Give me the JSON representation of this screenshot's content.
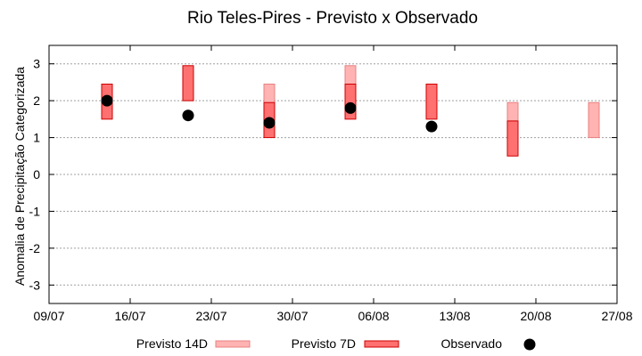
{
  "chart_data": {
    "type": "floating-bar",
    "title": "Rio Teles-Pires - Previsto x Observado",
    "xlabel": "",
    "ylabel": "Anomalia de Precipitação Categorizada",
    "ylim": [
      -3.5,
      3.5
    ],
    "yticks": [
      -3,
      -2,
      -1,
      0,
      1,
      2,
      3
    ],
    "xlim": [
      "2024-07-09",
      "2024-08-27"
    ],
    "xticks": [
      "2024-07-09",
      "2024-07-16",
      "2024-07-23",
      "2024-07-30",
      "2024-08-06",
      "2024-08-13",
      "2024-08-20",
      "2024-08-27"
    ],
    "xtick_labels": [
      "09/07",
      "16/07",
      "23/07",
      "30/07",
      "06/08",
      "13/08",
      "20/08",
      "27/08"
    ],
    "grid": true,
    "legend_position": "bottom",
    "series": [
      {
        "name": "Previsto 14D",
        "kind": "range",
        "color": "#ffb3b3",
        "edge": "#e88080",
        "points": [
          {
            "x": "2024-07-28",
            "low": 1.5,
            "high": 2.45
          },
          {
            "x": "2024-08-04",
            "low": 2.45,
            "high": 2.95
          },
          {
            "x": "2024-08-18",
            "low": 1.45,
            "high": 1.95
          },
          {
            "x": "2024-08-25",
            "low": 1.0,
            "high": 1.95
          }
        ]
      },
      {
        "name": "Previsto 7D",
        "kind": "range",
        "color": "#ff7070",
        "edge": "#cc0000",
        "points": [
          {
            "x": "2024-07-14",
            "low": 1.5,
            "high": 2.45
          },
          {
            "x": "2024-07-21",
            "low": 2.0,
            "high": 2.95
          },
          {
            "x": "2024-07-28",
            "low": 1.0,
            "high": 1.95
          },
          {
            "x": "2024-08-04",
            "low": 1.5,
            "high": 2.45
          },
          {
            "x": "2024-08-11",
            "low": 1.5,
            "high": 2.45
          },
          {
            "x": "2024-08-18",
            "low": 0.5,
            "high": 1.45
          }
        ]
      },
      {
        "name": "Observado",
        "kind": "point",
        "color": "#000000",
        "points": [
          {
            "x": "2024-07-14",
            "y": 2.0
          },
          {
            "x": "2024-07-21",
            "y": 1.6
          },
          {
            "x": "2024-07-28",
            "y": 1.4
          },
          {
            "x": "2024-08-04",
            "y": 1.8
          },
          {
            "x": "2024-08-11",
            "y": 1.3
          }
        ]
      }
    ]
  }
}
